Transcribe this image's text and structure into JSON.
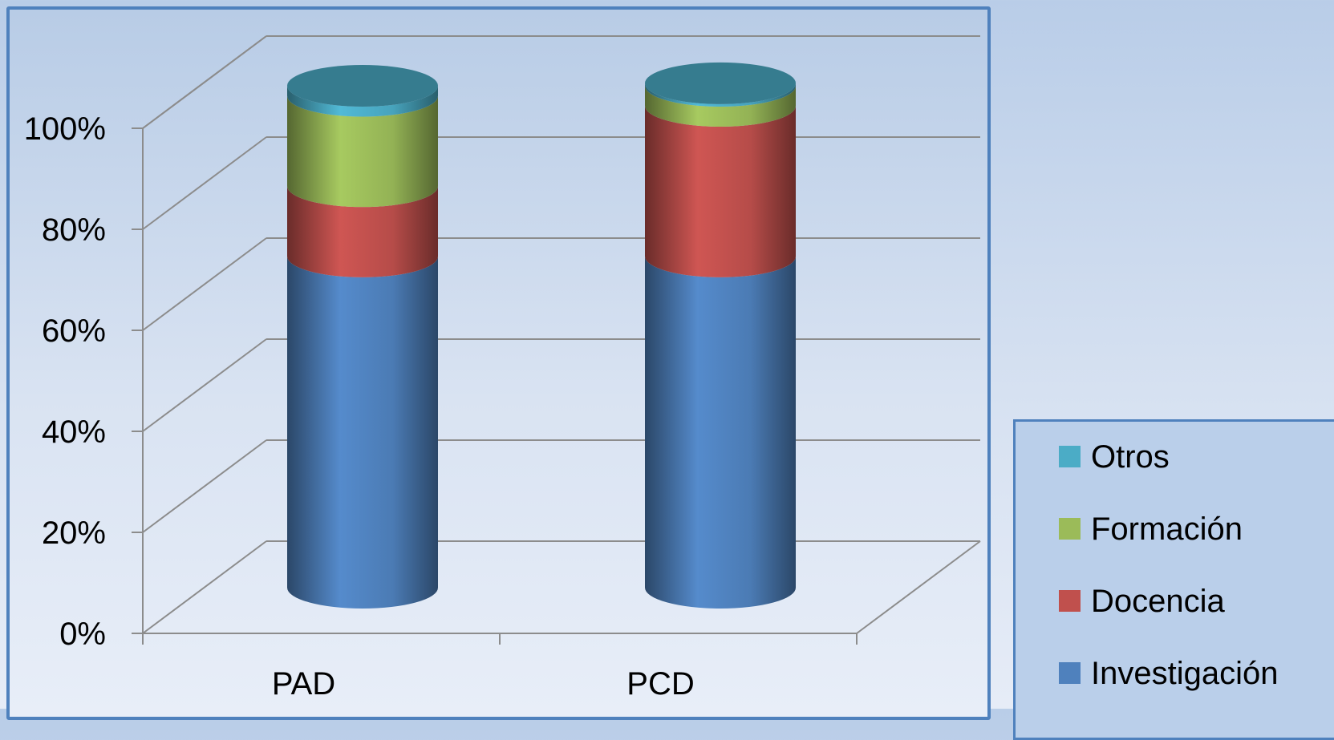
{
  "chart_data": {
    "type": "bar",
    "stacked": true,
    "orientation": "vertical",
    "three_d": "cylinder",
    "title": "",
    "xlabel": "",
    "ylabel": "",
    "categories": [
      "PAD",
      "PCD"
    ],
    "ylim": [
      0,
      100
    ],
    "y_ticks": [
      "0%",
      "20%",
      "40%",
      "60%",
      "80%",
      "100%"
    ],
    "y_tick_values": [
      0,
      20,
      40,
      60,
      80,
      100
    ],
    "grid": true,
    "legend_position": "bottom-right",
    "series": [
      {
        "name": "Investigación",
        "color": "#4f81bd",
        "values": [
          66,
          66
        ]
      },
      {
        "name": "Docencia",
        "color": "#c0504d",
        "values": [
          14,
          30
        ]
      },
      {
        "name": "Formación",
        "color": "#9bbb59",
        "values": [
          18,
          4
        ]
      },
      {
        "name": "Otros",
        "color": "#4bacc6",
        "values": [
          2,
          0.5
        ]
      }
    ]
  }
}
